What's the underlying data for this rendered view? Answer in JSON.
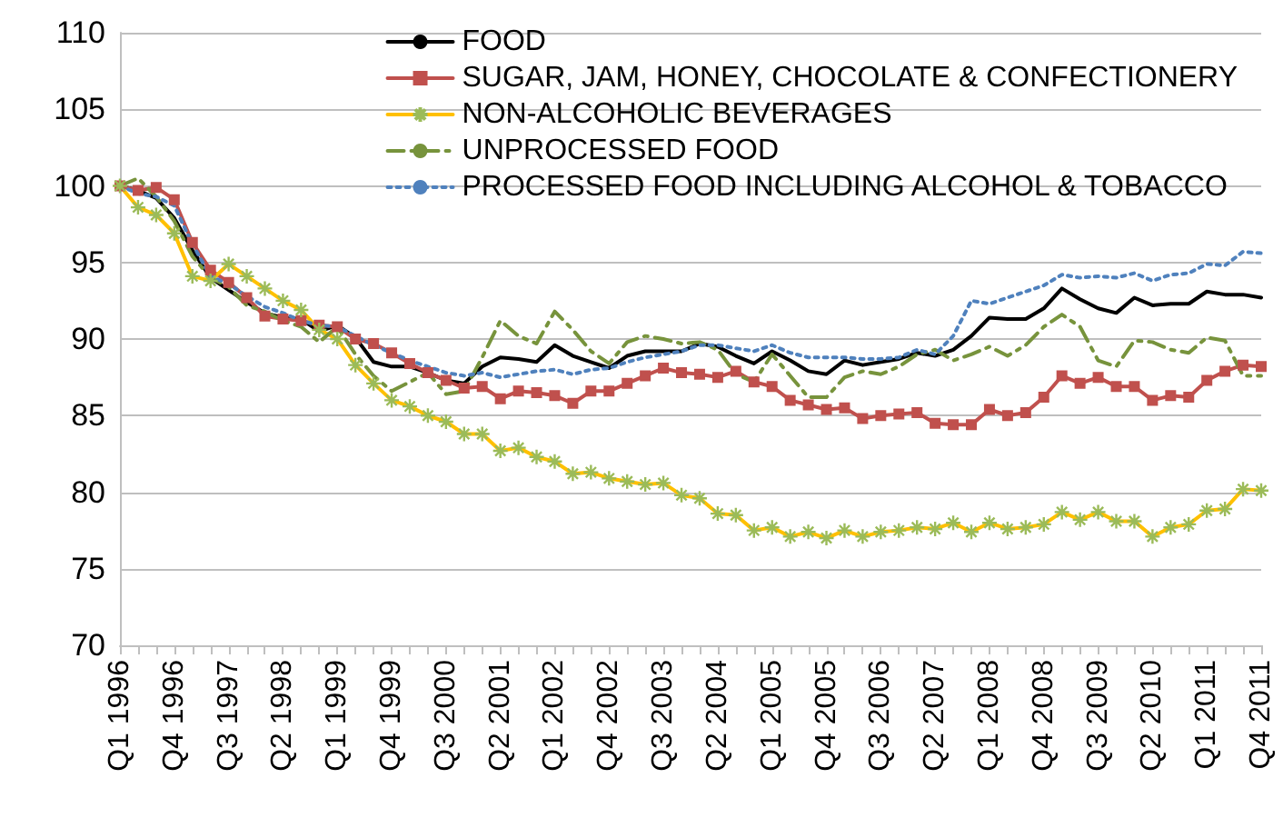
{
  "chart_data": {
    "type": "line",
    "categories": [
      "Q1 1996",
      null,
      null,
      "Q4 1996",
      null,
      null,
      "Q3 1997",
      null,
      null,
      "Q2 1998",
      null,
      null,
      "Q1 1999",
      null,
      null,
      "Q4 1999",
      null,
      null,
      "Q3 2000",
      null,
      null,
      "Q2 2001",
      null,
      null,
      "Q1 2002",
      null,
      null,
      "Q4 2002",
      null,
      null,
      "Q3 2003",
      null,
      null,
      "Q2 2004",
      null,
      null,
      "Q1 2005",
      null,
      null,
      "Q4 2005",
      null,
      null,
      "Q3 2006",
      null,
      null,
      "Q2 2007",
      null,
      null,
      "Q1 2008",
      null,
      null,
      "Q4 2008",
      null,
      null,
      "Q3 2009",
      null,
      null,
      "Q2 2010",
      null,
      null,
      "Q1 2011",
      null,
      null,
      "Q4 2011"
    ],
    "series": [
      {
        "name": "FOOD",
        "color": "#000000",
        "line_style": "solid",
        "marker": "none",
        "values": [
          100,
          99.7,
          99.2,
          97.9,
          95.8,
          94.0,
          93.2,
          92.4,
          91.7,
          91.4,
          91.3,
          90.5,
          90.9,
          90.1,
          88.5,
          88.2,
          88.2,
          87.8,
          87.3,
          87.1,
          88.2,
          88.8,
          88.7,
          88.5,
          89.6,
          88.9,
          88.5,
          88.1,
          88.9,
          89.2,
          89.2,
          89.2,
          89.7,
          89.5,
          88.9,
          88.4,
          89.2,
          88.6,
          87.9,
          87.7,
          88.6,
          88.3,
          88.5,
          88.7,
          89.1,
          88.9,
          89.3,
          90.2,
          91.4,
          91.3,
          91.3,
          92.0,
          93.3,
          92.6,
          92.0,
          91.7,
          92.7,
          92.2,
          92.3,
          92.3,
          93.1,
          92.9,
          92.9,
          92.7
        ]
      },
      {
        "name": "SUGAR, JAM, HONEY, CHOCOLATE & CONFECTIONERY",
        "color": "#c0504d",
        "line_style": "solid",
        "marker": "square",
        "values": [
          100,
          99.7,
          99.9,
          99.1,
          96.3,
          94.5,
          93.7,
          92.7,
          91.5,
          91.3,
          91.2,
          90.9,
          90.8,
          90.0,
          89.7,
          89.1,
          88.4,
          87.8,
          87.3,
          86.8,
          86.9,
          86.1,
          86.6,
          86.5,
          86.3,
          85.8,
          86.6,
          86.6,
          87.1,
          87.6,
          88.1,
          87.8,
          87.7,
          87.5,
          87.9,
          87.2,
          86.9,
          86.0,
          85.7,
          85.4,
          85.5,
          84.8,
          85.0,
          85.1,
          85.2,
          84.5,
          84.4,
          84.4,
          85.4,
          85.0,
          85.2,
          86.2,
          87.6,
          87.1,
          87.5,
          86.9,
          86.9,
          86.0,
          86.3,
          86.2,
          87.3,
          87.9,
          88.3,
          88.2
        ]
      },
      {
        "name": "NON-ALCOHOLIC BEVERAGES",
        "color": "#ffc000",
        "line_style": "solid",
        "marker": "cross",
        "values": [
          100,
          98.6,
          98.1,
          96.9,
          94.1,
          93.8,
          94.9,
          94.1,
          93.3,
          92.5,
          91.9,
          90.6,
          90.0,
          88.3,
          87.1,
          86.0,
          85.6,
          85.0,
          84.6,
          83.8,
          83.8,
          82.7,
          82.9,
          82.3,
          82.0,
          81.2,
          81.3,
          80.9,
          80.7,
          80.5,
          80.6,
          79.8,
          79.6,
          78.6,
          78.5,
          77.5,
          77.7,
          77.1,
          77.4,
          77.0,
          77.5,
          77.1,
          77.4,
          77.5,
          77.7,
          77.6,
          78.0,
          77.4,
          78.0,
          77.6,
          77.7,
          77.9,
          78.7,
          78.2,
          78.7,
          78.1,
          78.1,
          77.1,
          77.7,
          77.9,
          78.8,
          78.9,
          80.2,
          80.1
        ]
      },
      {
        "name": "UNPROCESSED FOOD",
        "color": "#77933c",
        "line_style": "dashed",
        "marker": "none",
        "values": [
          100,
          100.5,
          99.3,
          97.7,
          95.4,
          94.0,
          93.4,
          92.2,
          91.8,
          91.2,
          90.8,
          89.8,
          90.8,
          89.0,
          87.6,
          86.6,
          87.2,
          87.8,
          86.4,
          86.6,
          88.8,
          91.2,
          90.2,
          89.7,
          91.8,
          90.6,
          89.2,
          88.4,
          89.8,
          90.2,
          90.0,
          89.7,
          89.8,
          89.3,
          87.7,
          87.2,
          89.0,
          87.6,
          86.2,
          86.2,
          87.5,
          87.9,
          87.7,
          88.2,
          89.0,
          89.3,
          88.6,
          89.0,
          89.5,
          88.9,
          89.6,
          90.8,
          91.6,
          90.8,
          88.6,
          88.2,
          89.9,
          89.8,
          89.3,
          89.1,
          90.1,
          89.9,
          87.6,
          87.6
        ]
      },
      {
        "name": "PROCESSED FOOD INCLUDING ALCOHOL & TOBACCO",
        "color": "#4f81bd",
        "line_style": "dotted",
        "marker": "none",
        "values": [
          100,
          99.5,
          99.3,
          98.7,
          96.2,
          94.1,
          93.6,
          92.8,
          92.1,
          91.7,
          91.2,
          90.9,
          90.8,
          90.2,
          89.6,
          89.1,
          88.6,
          88.2,
          87.8,
          87.6,
          87.8,
          87.5,
          87.7,
          87.9,
          88.0,
          87.7,
          88.0,
          88.1,
          88.5,
          88.8,
          89.0,
          89.2,
          89.6,
          89.6,
          89.4,
          89.2,
          89.6,
          89.1,
          88.8,
          88.8,
          88.8,
          88.7,
          88.7,
          88.8,
          89.3,
          89.0,
          90.2,
          92.5,
          92.3,
          92.7,
          93.1,
          93.5,
          94.2,
          94.0,
          94.1,
          94.0,
          94.3,
          93.8,
          94.2,
          94.3,
          94.9,
          94.8,
          95.7,
          95.6
        ]
      }
    ],
    "ylim": [
      70,
      110
    ],
    "yticks": [
      70,
      75,
      80,
      85,
      90,
      95,
      100,
      105,
      110
    ],
    "grid": "y",
    "legend": "top right"
  }
}
